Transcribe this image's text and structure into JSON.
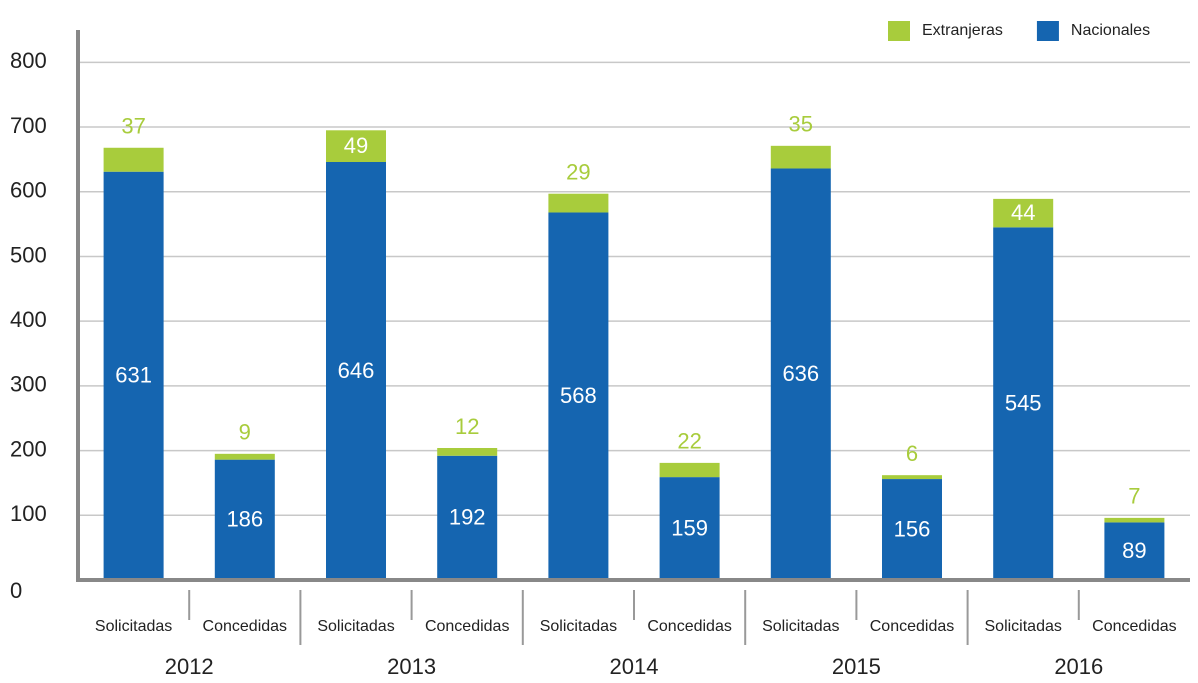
{
  "chart_data": {
    "type": "stacked_bar",
    "categories": [
      "Solicitadas",
      "Concedidas",
      "Solicitadas",
      "Concedidas",
      "Solicitadas",
      "Concedidas",
      "Solicitadas",
      "Concedidas",
      "Solicitadas",
      "Concedidas"
    ],
    "groups": [
      "2012",
      "2013",
      "2014",
      "2015",
      "2016"
    ],
    "series": [
      {
        "name": "Nacionales",
        "color": "#1565b0",
        "values": [
          631,
          186,
          646,
          192,
          568,
          159,
          636,
          156,
          545,
          89
        ]
      },
      {
        "name": "Extranjeras",
        "color": "#a8cc3c",
        "values": [
          37,
          9,
          49,
          12,
          29,
          22,
          35,
          6,
          44,
          7
        ]
      }
    ],
    "ylim": [
      0,
      850
    ],
    "yticks": [
      0,
      100,
      200,
      300,
      400,
      500,
      600,
      700,
      800
    ],
    "grid": true,
    "legend": "top-right"
  }
}
